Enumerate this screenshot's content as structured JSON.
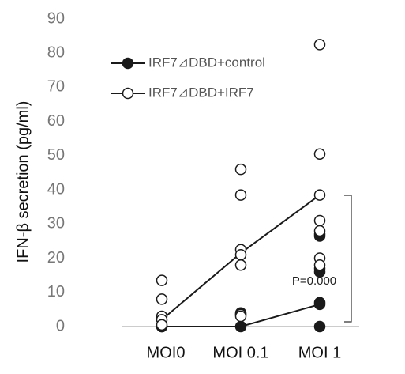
{
  "chart_data": {
    "type": "dot-line",
    "y_label": "IFN-β secretion (pg/ml)",
    "categories": [
      "MOI0",
      "MOI 0.1",
      "MOI 1"
    ],
    "series": [
      {
        "name": "IRF7⊿DBD+control",
        "color": "#1a1a1a",
        "filled": true,
        "values": [
          0,
          0,
          6.5
        ],
        "points": [
          [
            0,
            0
          ],
          [
            4,
            3.5,
            0
          ],
          [
            27,
            26.5,
            17,
            16,
            7,
            6.5,
            0
          ]
        ]
      },
      {
        "name": "IRF7⊿DBD+IRF7",
        "color": "#1a1a1a",
        "filled": false,
        "values": [
          2,
          21.5,
          38.5
        ],
        "points": [
          [
            13.5,
            8,
            3,
            2,
            0.5
          ],
          [
            46,
            38.5,
            22.5,
            21,
            18,
            3.5,
            3
          ],
          [
            82.5,
            50.5,
            38.5,
            31,
            28,
            20,
            18
          ]
        ]
      }
    ],
    "annotation": "P=0.000",
    "ylim": [
      0,
      90
    ],
    "yticks": [
      0,
      10,
      20,
      30,
      40,
      50,
      60,
      70,
      80,
      90
    ],
    "legend": "upper left"
  }
}
